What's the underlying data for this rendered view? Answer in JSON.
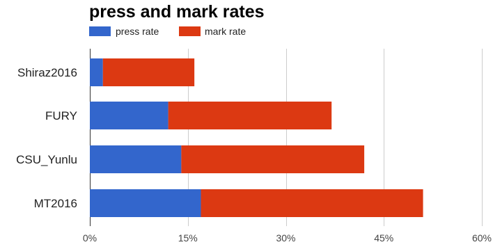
{
  "chart_data": {
    "type": "bar",
    "orientation": "horizontal",
    "stacked": true,
    "title": "press and mark rates",
    "categories": [
      "Shiraz2016",
      "FURY",
      "CSU_Yunlu",
      "MT2016"
    ],
    "series": [
      {
        "name": "press rate",
        "color": "#3366cc",
        "values": [
          2,
          12,
          14,
          17
        ]
      },
      {
        "name": "mark rate",
        "color": "#dc3912",
        "values": [
          14,
          25,
          28,
          34
        ]
      }
    ],
    "x_ticks": [
      0,
      15,
      30,
      45,
      60
    ],
    "x_tick_labels": [
      "0%",
      "15%",
      "30%",
      "45%",
      "60%"
    ],
    "xlim": [
      0,
      60
    ],
    "grid": true,
    "legend_position": "top-left",
    "xlabel": "",
    "ylabel": ""
  }
}
